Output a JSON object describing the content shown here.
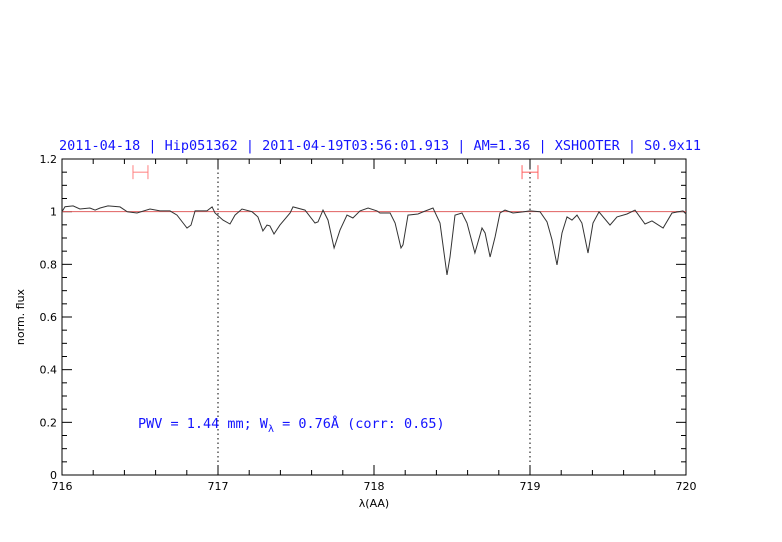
{
  "chart_data": {
    "type": "line",
    "title": "2011-04-18 | Hip051362 | 2011-04-19T03:56:01.913 | AM=1.36 | XSHOOTER | S0.9x11",
    "xlabel": "λ(AA)",
    "ylabel": "norm. flux",
    "xlim": [
      716,
      720
    ],
    "ylim": [
      0,
      1.2
    ],
    "x_ticks": [
      "716",
      "717",
      "718",
      "719",
      "720"
    ],
    "y_ticks": [
      "0",
      "0.2",
      "0.4",
      "0.6",
      "0.8",
      "1",
      "1.2"
    ],
    "x_minor_step": 0.2,
    "y_minor_step": 0.05,
    "grid": false,
    "reference_line": {
      "y": 1.0,
      "color": "#e06060"
    },
    "vertical_dotted_lines": [
      717,
      719
    ],
    "intervals": [
      {
        "x": [
          716.455,
          716.551
        ],
        "y": 1.15,
        "color": "#ff8080"
      },
      {
        "x": [
          718.949,
          719.051
        ],
        "y": 1.15,
        "color": "#ff6060"
      }
    ],
    "annotation": {
      "pwv": "PWV = 1.44  mm;",
      "w_symbol": "W",
      "w_subscript": "λ",
      "w_value": " = 0.76Å  (corr: 0.65)"
    },
    "series": [
      {
        "color": "#333333",
        "x": [
          716.0,
          716.019,
          716.071,
          716.115,
          716.179,
          716.212,
          716.244,
          716.295,
          716.372,
          716.417,
          716.481,
          716.564,
          716.628,
          716.692,
          716.737,
          716.776,
          716.801,
          716.827,
          716.853,
          716.904,
          716.929,
          716.962,
          716.981,
          717.032,
          717.077,
          717.109,
          717.154,
          717.218,
          717.256,
          717.288,
          717.314,
          717.333,
          717.359,
          717.397,
          717.462,
          717.481,
          717.558,
          717.622,
          717.641,
          717.673,
          717.705,
          717.744,
          717.782,
          717.827,
          717.865,
          717.91,
          717.962,
          718.019,
          718.038,
          718.103,
          718.135,
          718.173,
          718.186,
          718.218,
          718.282,
          718.314,
          718.378,
          718.423,
          718.468,
          718.487,
          718.519,
          718.564,
          718.596,
          718.647,
          718.692,
          718.712,
          718.744,
          718.776,
          718.808,
          718.84,
          718.891,
          718.955,
          719.0,
          719.064,
          719.109,
          719.141,
          719.173,
          719.205,
          719.237,
          719.269,
          719.301,
          719.333,
          719.372,
          719.404,
          719.442,
          719.513,
          719.558,
          719.622,
          719.673,
          719.737,
          719.782,
          719.853,
          719.91,
          719.981,
          720.0
        ],
        "y": [
          1.0,
          1.019,
          1.022,
          1.01,
          1.014,
          1.006,
          1.014,
          1.022,
          1.018,
          1.0,
          0.995,
          1.01,
          1.003,
          1.003,
          0.987,
          0.957,
          0.938,
          0.949,
          1.003,
          1.003,
          1.003,
          1.018,
          0.995,
          0.968,
          0.953,
          0.987,
          1.01,
          1.0,
          0.98,
          0.927,
          0.949,
          0.946,
          0.915,
          0.949,
          0.995,
          1.018,
          1.006,
          0.957,
          0.961,
          1.006,
          0.968,
          0.862,
          0.93,
          0.987,
          0.976,
          1.003,
          1.014,
          1.003,
          0.995,
          0.995,
          0.957,
          0.862,
          0.874,
          0.987,
          0.991,
          0.999,
          1.014,
          0.957,
          0.76,
          0.828,
          0.987,
          0.995,
          0.957,
          0.843,
          0.938,
          0.919,
          0.828,
          0.904,
          0.995,
          1.006,
          0.995,
          0.999,
          1.003,
          1.0,
          0.961,
          0.893,
          0.798,
          0.919,
          0.98,
          0.968,
          0.987,
          0.957,
          0.843,
          0.957,
          0.999,
          0.949,
          0.98,
          0.991,
          1.006,
          0.953,
          0.965,
          0.938,
          0.995,
          1.003,
          0.991
        ]
      }
    ]
  }
}
